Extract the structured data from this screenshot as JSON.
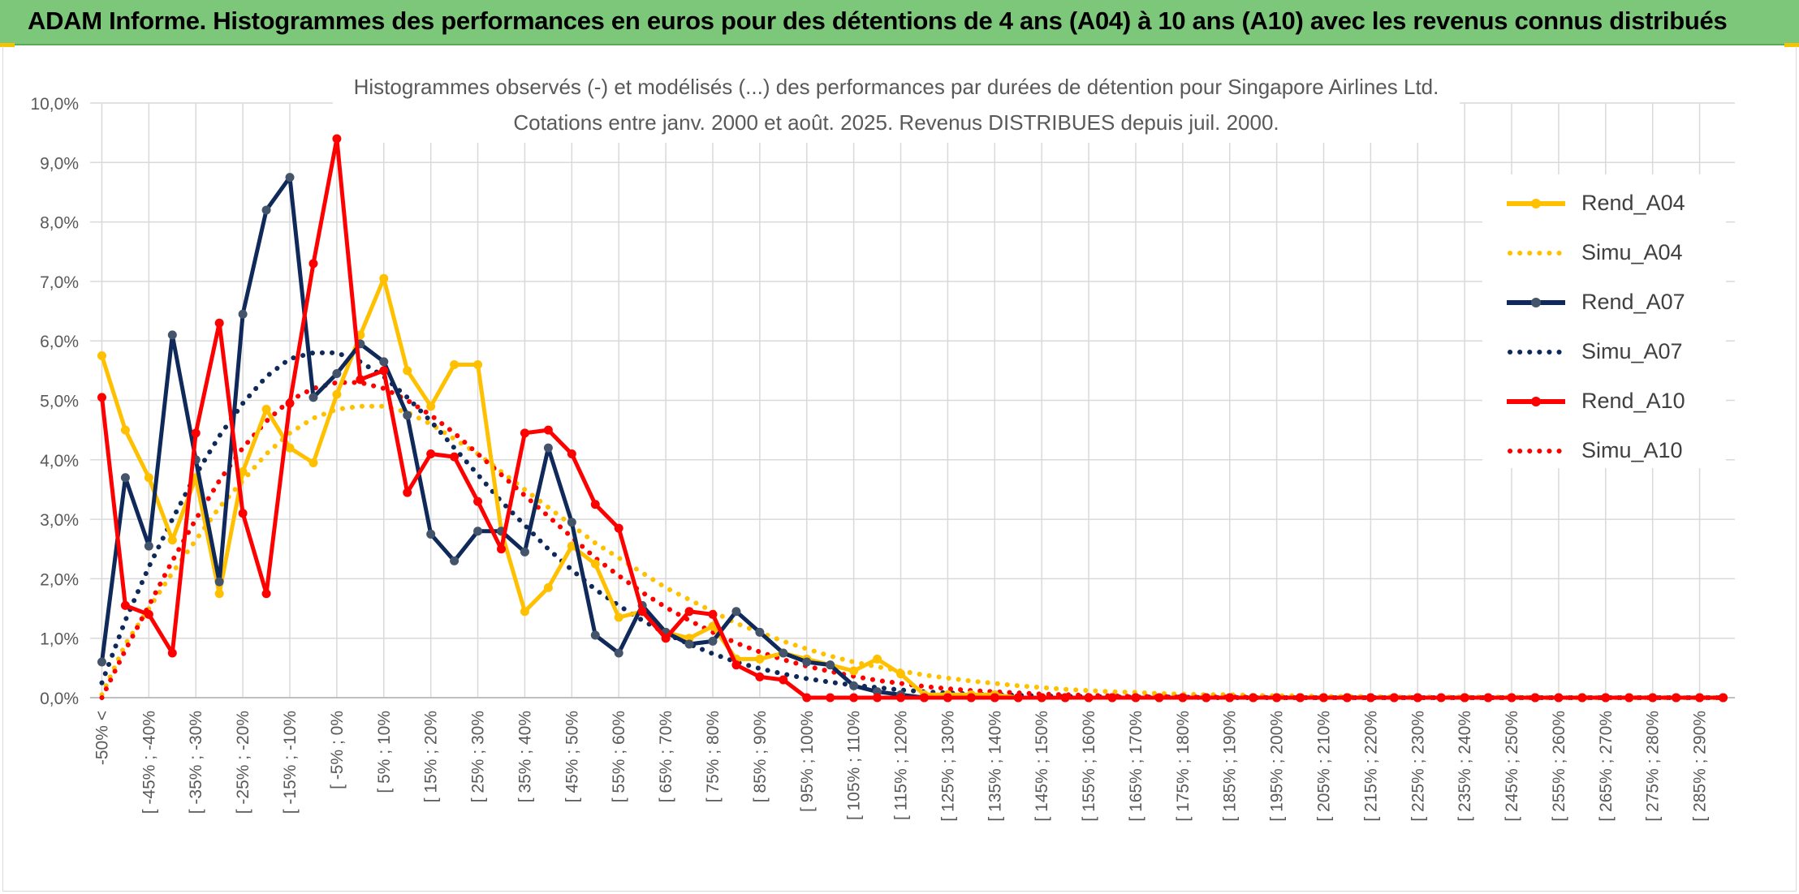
{
  "header": {
    "title": "ADAM Informe. Histogrammes des performances en euros pour des détentions de 4 ans (A04) à 10 ans (A10) avec les revenus connus distribués"
  },
  "colors": {
    "header_bg": "#7dc77a",
    "A04": "#ffc000",
    "A07": "#0f2a5a",
    "A10": "#ff0000",
    "grid": "#d9d9d9",
    "text": "#595959"
  },
  "chart_data": {
    "type": "line",
    "title_line1": "Histogrammes observés (-) et modélisés (...) des performances par durées de détention pour Singapore Airlines Ltd.",
    "title_line2": "Cotations entre janv. 2000 et août. 2025. Revenus DISTRIBUES depuis juil. 2000.",
    "ylim": [
      0,
      10
    ],
    "y_ticks": [
      "0,0%",
      "1,0%",
      "2,0%",
      "3,0%",
      "4,0%",
      "5,0%",
      "6,0%",
      "7,0%",
      "8,0%",
      "9,0%",
      "10,0%"
    ],
    "grid": true,
    "legend_position": "right",
    "x_tick_labels": [
      "-50% <",
      "[ -45% ; -40%",
      "[ -35% ; -30%",
      "[ -25% ; -20%",
      "[ -15% ; -10%",
      "[ -5% ; 0%",
      "[ 5% ; 10%",
      "[ 15% ; 20%",
      "[ 25% ; 30%",
      "[ 35% ; 40%",
      "[ 45% ; 50%",
      "[ 55% ; 60%",
      "[ 65% ; 70%",
      "[ 75% ; 80%",
      "[ 85% ; 90%",
      "[ 95% ; 100%",
      "[ 105% ; 110%",
      "[ 115% ; 120%",
      "[ 125% ; 130%",
      "[ 135% ; 140%",
      "[ 145% ; 150%",
      "[ 155% ; 160%",
      "[ 165% ; 170%",
      "[ 175% ; 180%",
      "[ 185% ; 190%",
      "[ 195% ; 200%",
      "[ 205% ; 210%",
      "[ 215% ; 220%",
      "[ 225% ; 230%",
      "[ 235% ; 240%",
      "[ 245% ; 250%",
      "[ 255% ; 260%",
      "[ 265% ; 270%",
      "[ 275% ; 280%",
      "[ 285% ; 290%"
    ],
    "series": [
      {
        "name": "Rend_A04",
        "style": "solid",
        "color": "#ffc000",
        "values": [
          5.75,
          4.5,
          3.7,
          2.65,
          3.7,
          1.75,
          3.8,
          4.85,
          4.2,
          3.95,
          5.1,
          6.1,
          7.05,
          5.5,
          4.9,
          5.6,
          5.6,
          2.8,
          1.45,
          1.85,
          2.55,
          2.25,
          1.35,
          1.45,
          1.1,
          1.0,
          1.2,
          0.65,
          0.65,
          0.75,
          0.65,
          0.55,
          0.45,
          0.65,
          0.4,
          0.05,
          0.05,
          0.05,
          0.05,
          0,
          0,
          0,
          0,
          0,
          0,
          0,
          0,
          0,
          0,
          0,
          0,
          0,
          0,
          0,
          0,
          0,
          0,
          0,
          0,
          0,
          0,
          0,
          0,
          0,
          0,
          0,
          0,
          0,
          0,
          0
        ]
      },
      {
        "name": "Simu_A04",
        "style": "dotted",
        "color": "#ffc000",
        "values": [
          0.05,
          0.9,
          1.5,
          2.1,
          2.65,
          3.2,
          3.65,
          4.1,
          4.45,
          4.7,
          4.85,
          4.9,
          4.9,
          4.8,
          4.6,
          4.35,
          4.1,
          3.8,
          3.5,
          3.2,
          2.9,
          2.6,
          2.35,
          2.1,
          1.85,
          1.65,
          1.45,
          1.25,
          1.1,
          0.95,
          0.82,
          0.7,
          0.6,
          0.52,
          0.45,
          0.38,
          0.33,
          0.28,
          0.24,
          0.2,
          0.17,
          0.14,
          0.12,
          0.1,
          0.09,
          0.07,
          0.06,
          0.05,
          0.05,
          0.04,
          0.03,
          0.03,
          0.02,
          0.02,
          0.02,
          0.01,
          0.01,
          0.01,
          0.01,
          0.01,
          0.01,
          0,
          0,
          0,
          0,
          0,
          0,
          0,
          0,
          0
        ]
      },
      {
        "name": "Rend_A07",
        "style": "solid",
        "color": "#0f2a5a",
        "values": [
          0.6,
          3.7,
          2.55,
          6.1,
          4.0,
          1.95,
          6.45,
          8.2,
          8.75,
          5.05,
          5.45,
          5.95,
          5.65,
          4.75,
          2.75,
          2.3,
          2.8,
          2.8,
          2.45,
          4.2,
          2.95,
          1.05,
          0.75,
          1.55,
          1.1,
          0.9,
          0.95,
          1.45,
          1.1,
          0.75,
          0.6,
          0.55,
          0.2,
          0.1,
          0.05,
          0,
          0,
          0,
          0,
          0,
          0,
          0,
          0,
          0,
          0,
          0,
          0,
          0,
          0,
          0,
          0,
          0,
          0,
          0,
          0,
          0,
          0,
          0,
          0,
          0,
          0,
          0,
          0,
          0,
          0,
          0,
          0,
          0,
          0,
          0
        ]
      },
      {
        "name": "Simu_A07",
        "style": "dotted",
        "color": "#0f2a5a",
        "values": [
          0.25,
          1.3,
          2.2,
          3.0,
          3.75,
          4.4,
          4.95,
          5.4,
          5.7,
          5.8,
          5.8,
          5.65,
          5.4,
          5.05,
          4.65,
          4.2,
          3.75,
          3.3,
          2.9,
          2.5,
          2.15,
          1.82,
          1.55,
          1.3,
          1.08,
          0.9,
          0.74,
          0.6,
          0.49,
          0.4,
          0.32,
          0.26,
          0.21,
          0.17,
          0.13,
          0.1,
          0.08,
          0.06,
          0.05,
          0.04,
          0.03,
          0.02,
          0.02,
          0.01,
          0.01,
          0.01,
          0.01,
          0,
          0,
          0,
          0,
          0,
          0,
          0,
          0,
          0,
          0,
          0,
          0,
          0,
          0,
          0,
          0,
          0,
          0,
          0,
          0,
          0,
          0,
          0
        ]
      },
      {
        "name": "Rend_A10",
        "style": "solid",
        "color": "#ff0000",
        "values": [
          5.05,
          1.55,
          1.4,
          0.75,
          4.45,
          6.3,
          3.1,
          1.75,
          4.95,
          7.3,
          9.4,
          5.35,
          5.5,
          3.45,
          4.1,
          4.05,
          3.3,
          2.5,
          4.45,
          4.5,
          4.1,
          3.25,
          2.85,
          1.45,
          1.0,
          1.45,
          1.4,
          0.55,
          0.35,
          0.3,
          0,
          0,
          0,
          0,
          0,
          0,
          0,
          0,
          0,
          0,
          0,
          0,
          0,
          0,
          0,
          0,
          0,
          0,
          0,
          0,
          0,
          0,
          0,
          0,
          0,
          0,
          0,
          0,
          0,
          0,
          0,
          0,
          0,
          0,
          0,
          0,
          0,
          0,
          0,
          0
        ]
      },
      {
        "name": "Simu_A10",
        "style": "dotted",
        "color": "#ff0000",
        "values": [
          0.0,
          0.8,
          1.55,
          2.3,
          3.0,
          3.65,
          4.2,
          4.65,
          5.0,
          5.2,
          5.3,
          5.3,
          5.2,
          5.0,
          4.75,
          4.45,
          4.1,
          3.75,
          3.4,
          3.05,
          2.7,
          2.35,
          2.05,
          1.77,
          1.52,
          1.3,
          1.1,
          0.92,
          0.77,
          0.64,
          0.53,
          0.44,
          0.36,
          0.29,
          0.24,
          0.19,
          0.15,
          0.12,
          0.1,
          0.08,
          0.06,
          0.05,
          0.04,
          0.03,
          0.02,
          0.02,
          0.01,
          0.01,
          0.01,
          0.01,
          0,
          0,
          0,
          0,
          0,
          0,
          0,
          0,
          0,
          0,
          0,
          0,
          0,
          0,
          0,
          0,
          0,
          0,
          0,
          0
        ]
      }
    ]
  },
  "legend": [
    {
      "label": "Rend_A04",
      "color": "#ffc000",
      "style": "solid"
    },
    {
      "label": "Simu_A04",
      "color": "#ffc000",
      "style": "dotted"
    },
    {
      "label": "Rend_A07",
      "color": "#0f2a5a",
      "style": "solid"
    },
    {
      "label": "Simu_A07",
      "color": "#0f2a5a",
      "style": "dotted"
    },
    {
      "label": "Rend_A10",
      "color": "#ff0000",
      "style": "solid"
    },
    {
      "label": "Simu_A10",
      "color": "#ff0000",
      "style": "dotted"
    }
  ]
}
